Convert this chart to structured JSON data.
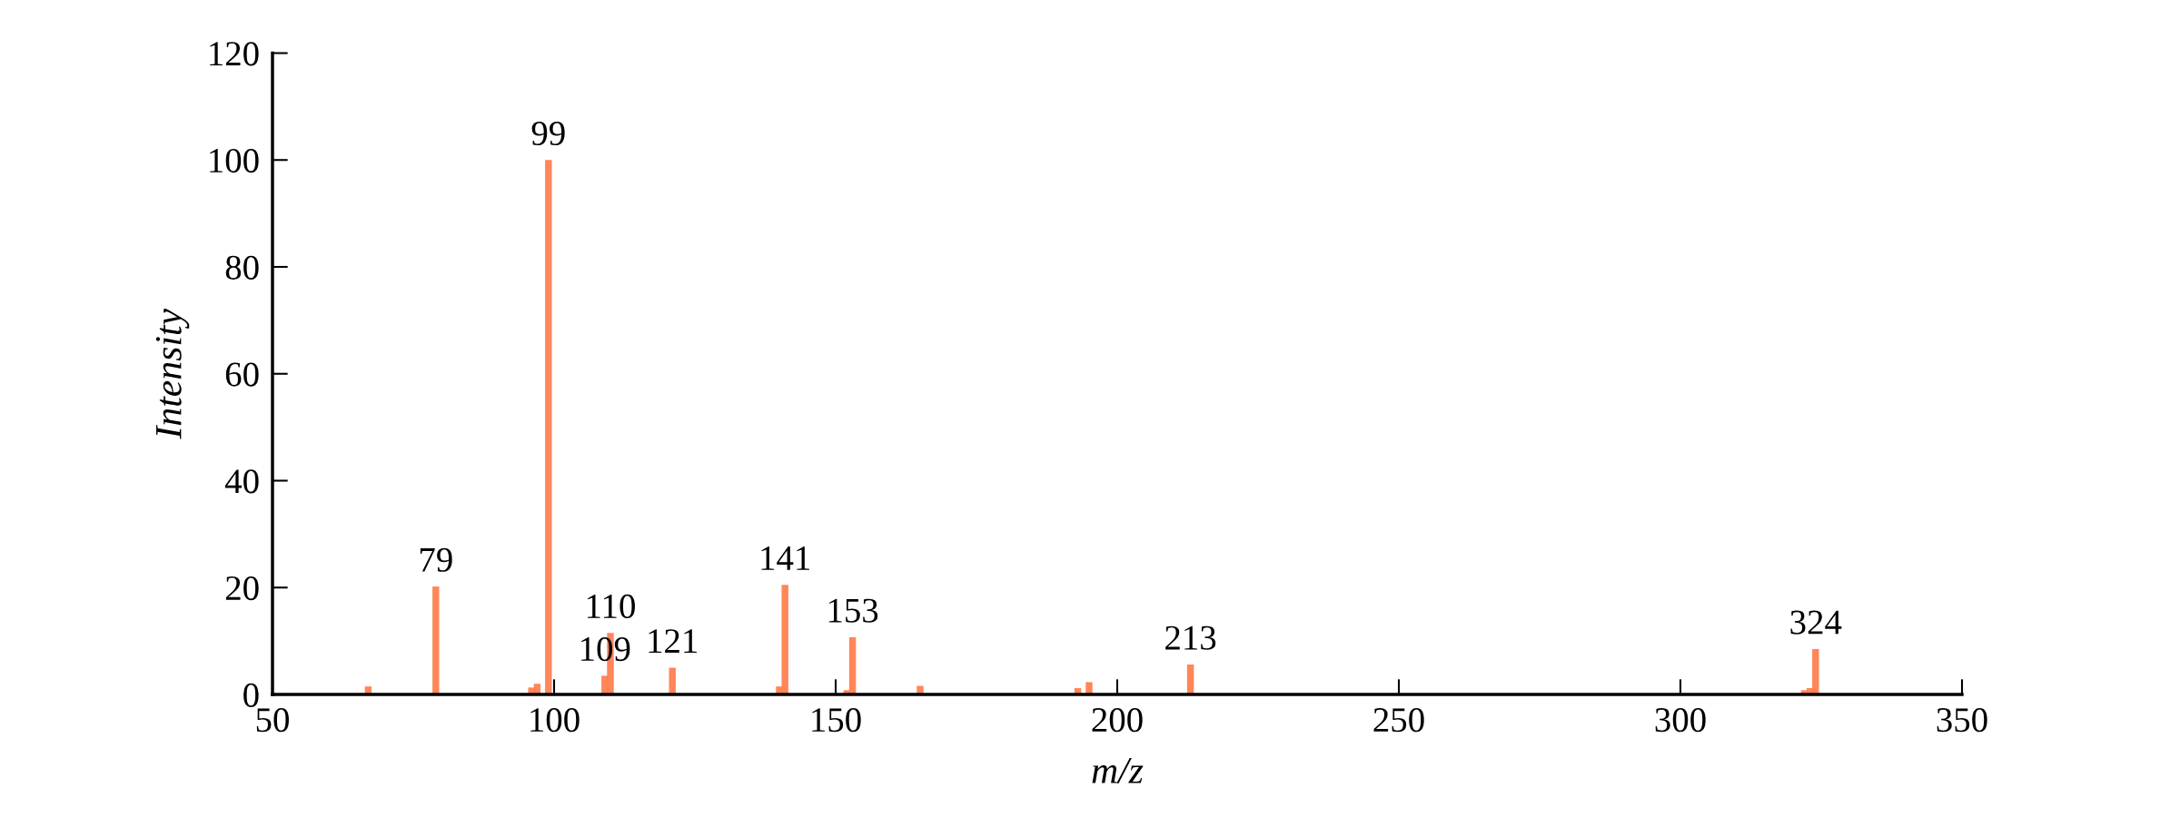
{
  "chart_data": {
    "type": "bar",
    "xlabel": "m/z",
    "ylabel": "Intensity",
    "x": [
      67,
      79,
      96,
      97,
      99,
      109,
      110,
      121,
      140,
      141,
      152,
      153,
      165,
      193,
      195,
      213,
      322,
      323,
      324
    ],
    "values": [
      1.5,
      20.2,
      1.3,
      2,
      100,
      3.5,
      11.5,
      5,
      1.5,
      20.5,
      0.8,
      10.7,
      1.6,
      1.2,
      2.3,
      5.6,
      0.8,
      1.2,
      8.5
    ],
    "color": "#ff7f50",
    "xlim": [
      50,
      350
    ],
    "xticks": [
      50,
      100,
      150,
      200,
      250,
      300,
      350
    ],
    "ylim": [
      0,
      120
    ],
    "yticks": [
      0,
      20,
      40,
      60,
      80,
      100,
      120
    ],
    "grid": false,
    "legend": false,
    "annotations": [
      {
        "text": "79",
        "x": 79,
        "y": 20.2
      },
      {
        "text": "99",
        "x": 99,
        "y": 100
      },
      {
        "text": "109",
        "x": 109,
        "y": 3.5
      },
      {
        "text": "110",
        "x": 110,
        "y": 11.5
      },
      {
        "text": "121",
        "x": 121,
        "y": 5
      },
      {
        "text": "141",
        "x": 141,
        "y": 20.5
      },
      {
        "text": "153",
        "x": 153,
        "y": 10.7
      },
      {
        "text": "213",
        "x": 213,
        "y": 5.6
      },
      {
        "text": "324",
        "x": 324,
        "y": 8.5
      }
    ]
  }
}
